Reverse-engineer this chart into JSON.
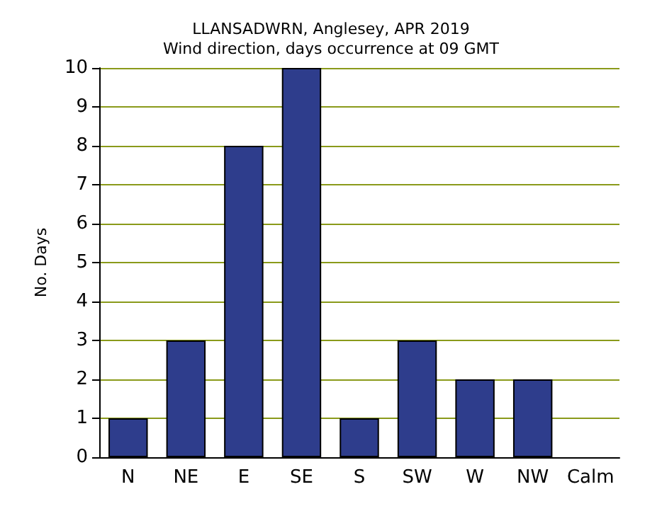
{
  "chart_data": {
    "type": "bar",
    "title": "LLANSADWRN, Anglesey, APR 2019",
    "subtitle": "Wind direction, days occurrence at 09 GMT",
    "ylabel": "No. Days",
    "categories": [
      "N",
      "NE",
      "E",
      "SE",
      "S",
      "SW",
      "W",
      "NW",
      "Calm"
    ],
    "values": [
      1,
      3,
      8,
      10,
      1,
      3,
      2,
      2,
      0
    ],
    "color": "#2e3d8c",
    "ylim": [
      0,
      10
    ],
    "yticks": [
      0,
      1,
      2,
      3,
      4,
      5,
      6,
      7,
      8,
      9,
      10
    ],
    "grid": "y"
  }
}
